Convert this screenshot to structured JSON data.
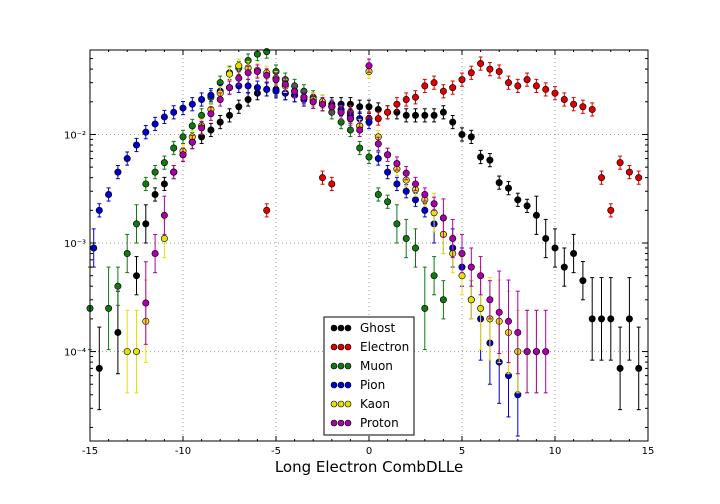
{
  "chart_data": {
    "type": "scatter",
    "title": "",
    "xlabel": "Long Electron CombDLLe",
    "ylabel": "",
    "xlim": [
      -15,
      15
    ],
    "ylim": [
      1.5e-05,
      0.06
    ],
    "yscale": "log",
    "grid": true,
    "legend_position": "bottom-center",
    "x_ticks": [
      "-15",
      "-10",
      "-5",
      "0",
      "5",
      "10",
      "15"
    ],
    "y_ticks": [
      {
        "value": 0.0001,
        "label": "10⁻⁴"
      },
      {
        "value": 0.001,
        "label": "10⁻³"
      },
      {
        "value": 0.01,
        "label": "10⁻²"
      }
    ],
    "series": [
      {
        "name": "Ghost",
        "color": "#000000",
        "x": [
          -14.5,
          -13.5,
          -12.5,
          -12,
          -11.5,
          -11,
          -10.5,
          -10,
          -9.5,
          -9,
          -8.5,
          -8,
          -7.5,
          -7,
          -6.5,
          -6,
          -5.5,
          -5,
          -4.5,
          -4,
          -3.5,
          -3,
          -2.5,
          -2,
          -1.5,
          -1,
          -0.5,
          0,
          0.5,
          1,
          1.5,
          2,
          2.5,
          3,
          3.5,
          4,
          4.5,
          5,
          5.5,
          6,
          6.5,
          7,
          7.5,
          8,
          8.5,
          9,
          9.5,
          10,
          10.5,
          11,
          11.5,
          12,
          12.5,
          13,
          13.5,
          14,
          14.5
        ],
        "y": [
          7e-05,
          0.00015,
          0.0005,
          0.0015,
          0.0028,
          0.0035,
          0.0045,
          0.0065,
          0.0085,
          0.0095,
          0.011,
          0.013,
          0.015,
          0.018,
          0.021,
          0.024,
          0.026,
          0.026,
          0.024,
          0.023,
          0.022,
          0.021,
          0.02,
          0.019,
          0.019,
          0.019,
          0.018,
          0.018,
          0.017,
          0.016,
          0.016,
          0.015,
          0.015,
          0.015,
          0.015,
          0.016,
          0.013,
          0.01,
          0.0095,
          0.0062,
          0.0058,
          0.0036,
          0.0032,
          0.0025,
          0.0022,
          0.0018,
          0.0011,
          0.0009,
          0.0006,
          0.0008,
          0.00045,
          0.0002,
          0.0002,
          0.0002,
          7e-05,
          0.0002,
          7e-05
        ]
      },
      {
        "name": "Electron",
        "color": "#dd0000",
        "x": [
          -5.5,
          -2.5,
          -2,
          -1,
          -0.5,
          0,
          0.5,
          1,
          1.5,
          2,
          2.5,
          3,
          3.5,
          4,
          4.5,
          5,
          5.5,
          6,
          6.5,
          7,
          7.5,
          8,
          8.5,
          9,
          9.5,
          10,
          10.5,
          11,
          11.5,
          12,
          12.5,
          13,
          13.5,
          14,
          14.5
        ],
        "y": [
          0.002,
          0.004,
          0.0035,
          0.016,
          0.012,
          0.014,
          0.014,
          0.016,
          0.019,
          0.021,
          0.022,
          0.028,
          0.03,
          0.025,
          0.027,
          0.032,
          0.037,
          0.045,
          0.04,
          0.038,
          0.03,
          0.028,
          0.032,
          0.028,
          0.026,
          0.024,
          0.021,
          0.019,
          0.018,
          0.017,
          0.004,
          0.002,
          0.0055,
          0.0045,
          0.004
        ]
      },
      {
        "name": "Muon",
        "color": "#117711",
        "x": [
          -15,
          -14,
          -13.5,
          -13,
          -12.5,
          -12,
          -11.5,
          -11,
          -10.5,
          -10,
          -9.5,
          -9,
          -8.5,
          -8,
          -7.5,
          -7,
          -6.5,
          -6,
          -5.5,
          -5,
          -4.5,
          -4,
          -3.5,
          -3,
          -2.5,
          -2,
          -1.5,
          -1,
          -0.5,
          0,
          0.5,
          1,
          1.5,
          2,
          2.5,
          3,
          3.5,
          4
        ],
        "y": [
          0.00025,
          0.00025,
          0.0004,
          0.0008,
          0.0015,
          0.0035,
          0.0045,
          0.0055,
          0.0075,
          0.0095,
          0.012,
          0.015,
          0.022,
          0.03,
          0.037,
          0.041,
          0.048,
          0.055,
          0.058,
          0.038,
          0.032,
          0.028,
          0.025,
          0.022,
          0.019,
          0.016,
          0.013,
          0.011,
          0.0075,
          0.0062,
          0.0028,
          0.0024,
          0.0015,
          0.0011,
          0.0009,
          0.00025,
          0.0005,
          0.0003
        ]
      },
      {
        "name": "Pion",
        "color": "#0000cc",
        "x": [
          -14.8,
          -14.5,
          -14,
          -13.5,
          -13,
          -12.5,
          -12,
          -11.5,
          -11,
          -10.5,
          -10,
          -9.5,
          -9,
          -8.5,
          -8,
          -7.5,
          -7,
          -6.5,
          -6,
          -5.5,
          -5,
          -4.5,
          -4,
          -3.5,
          -3,
          -2.5,
          -2,
          -1.5,
          -1,
          -0.5,
          0,
          0.5,
          1,
          1.5,
          2,
          2.5,
          3,
          3.5,
          4,
          4.5,
          5,
          5.5,
          6,
          6.5,
          7,
          7.5,
          8
        ],
        "y": [
          0.0009,
          0.002,
          0.0028,
          0.0045,
          0.006,
          0.008,
          0.0105,
          0.0125,
          0.0145,
          0.016,
          0.0175,
          0.019,
          0.021,
          0.023,
          0.025,
          0.027,
          0.028,
          0.028,
          0.027,
          0.026,
          0.025,
          0.024,
          0.023,
          0.021,
          0.02,
          0.019,
          0.018,
          0.017,
          0.015,
          0.014,
          0.013,
          0.006,
          0.0045,
          0.0035,
          0.003,
          0.0025,
          0.002,
          0.0015,
          0.0012,
          0.0009,
          0.0006,
          0.0003,
          0.0002,
          0.00012,
          8e-05,
          6e-05,
          4e-05
        ]
      },
      {
        "name": "Kaon",
        "color": "#e8e000",
        "x": [
          -13,
          -12.5,
          -12,
          -11,
          -10.5,
          -10,
          -9.5,
          -9,
          -8.5,
          -8,
          -7.5,
          -7,
          -6.5,
          -6,
          -5.5,
          -5,
          -4.5,
          -4,
          -3.5,
          -3,
          -2.5,
          -2,
          -1.5,
          -1,
          -0.5,
          0,
          0.5,
          1,
          1.5,
          2,
          2.5,
          3,
          3.5,
          4,
          4.5,
          5,
          5.5,
          6,
          6.5,
          7,
          7.5,
          8,
          8.5,
          9
        ],
        "y": [
          0.0001,
          0.0001,
          0.00019,
          0.0011,
          0.0045,
          0.007,
          0.0095,
          0.012,
          0.017,
          0.024,
          0.036,
          0.043,
          0.041,
          0.039,
          0.037,
          0.033,
          0.028,
          0.025,
          0.022,
          0.021,
          0.02,
          0.018,
          0.016,
          0.014,
          0.012,
          0.038,
          0.0095,
          0.0065,
          0.0048,
          0.0038,
          0.0031,
          0.0025,
          0.0019,
          0.0012,
          0.0008,
          0.0005,
          0.0003,
          0.00025,
          0.0002,
          0.00019,
          0.00015,
          0.0001,
          0.0001,
          0.0001
        ]
      },
      {
        "name": "Proton",
        "color": "#aa00aa",
        "x": [
          -12,
          -11.5,
          -11,
          -10.5,
          -10,
          -9.5,
          -9,
          -8.5,
          -8,
          -7.5,
          -7,
          -6.5,
          -6,
          -5.5,
          -5,
          -4.5,
          -4,
          -3.5,
          -3,
          -2.5,
          -2,
          -1.5,
          -1,
          -0.5,
          0,
          0.5,
          1,
          1.5,
          2,
          2.5,
          3,
          3.5,
          4,
          4.5,
          5,
          5.5,
          6,
          6.5,
          7,
          7.5,
          8,
          8.5,
          9,
          9.5
        ],
        "y": [
          0.00028,
          0.0008,
          0.0018,
          0.0045,
          0.0065,
          0.0085,
          0.0115,
          0.0155,
          0.021,
          0.027,
          0.033,
          0.037,
          0.038,
          0.035,
          0.032,
          0.029,
          0.025,
          0.022,
          0.02,
          0.019,
          0.018,
          0.016,
          0.014,
          0.011,
          0.043,
          0.0082,
          0.0065,
          0.0054,
          0.0044,
          0.0035,
          0.0028,
          0.0023,
          0.0017,
          0.0011,
          0.0008,
          0.0006,
          0.0005,
          0.0003,
          0.00023,
          0.00019,
          0.00015,
          0.0001,
          0.0001,
          0.0001
        ]
      }
    ]
  }
}
